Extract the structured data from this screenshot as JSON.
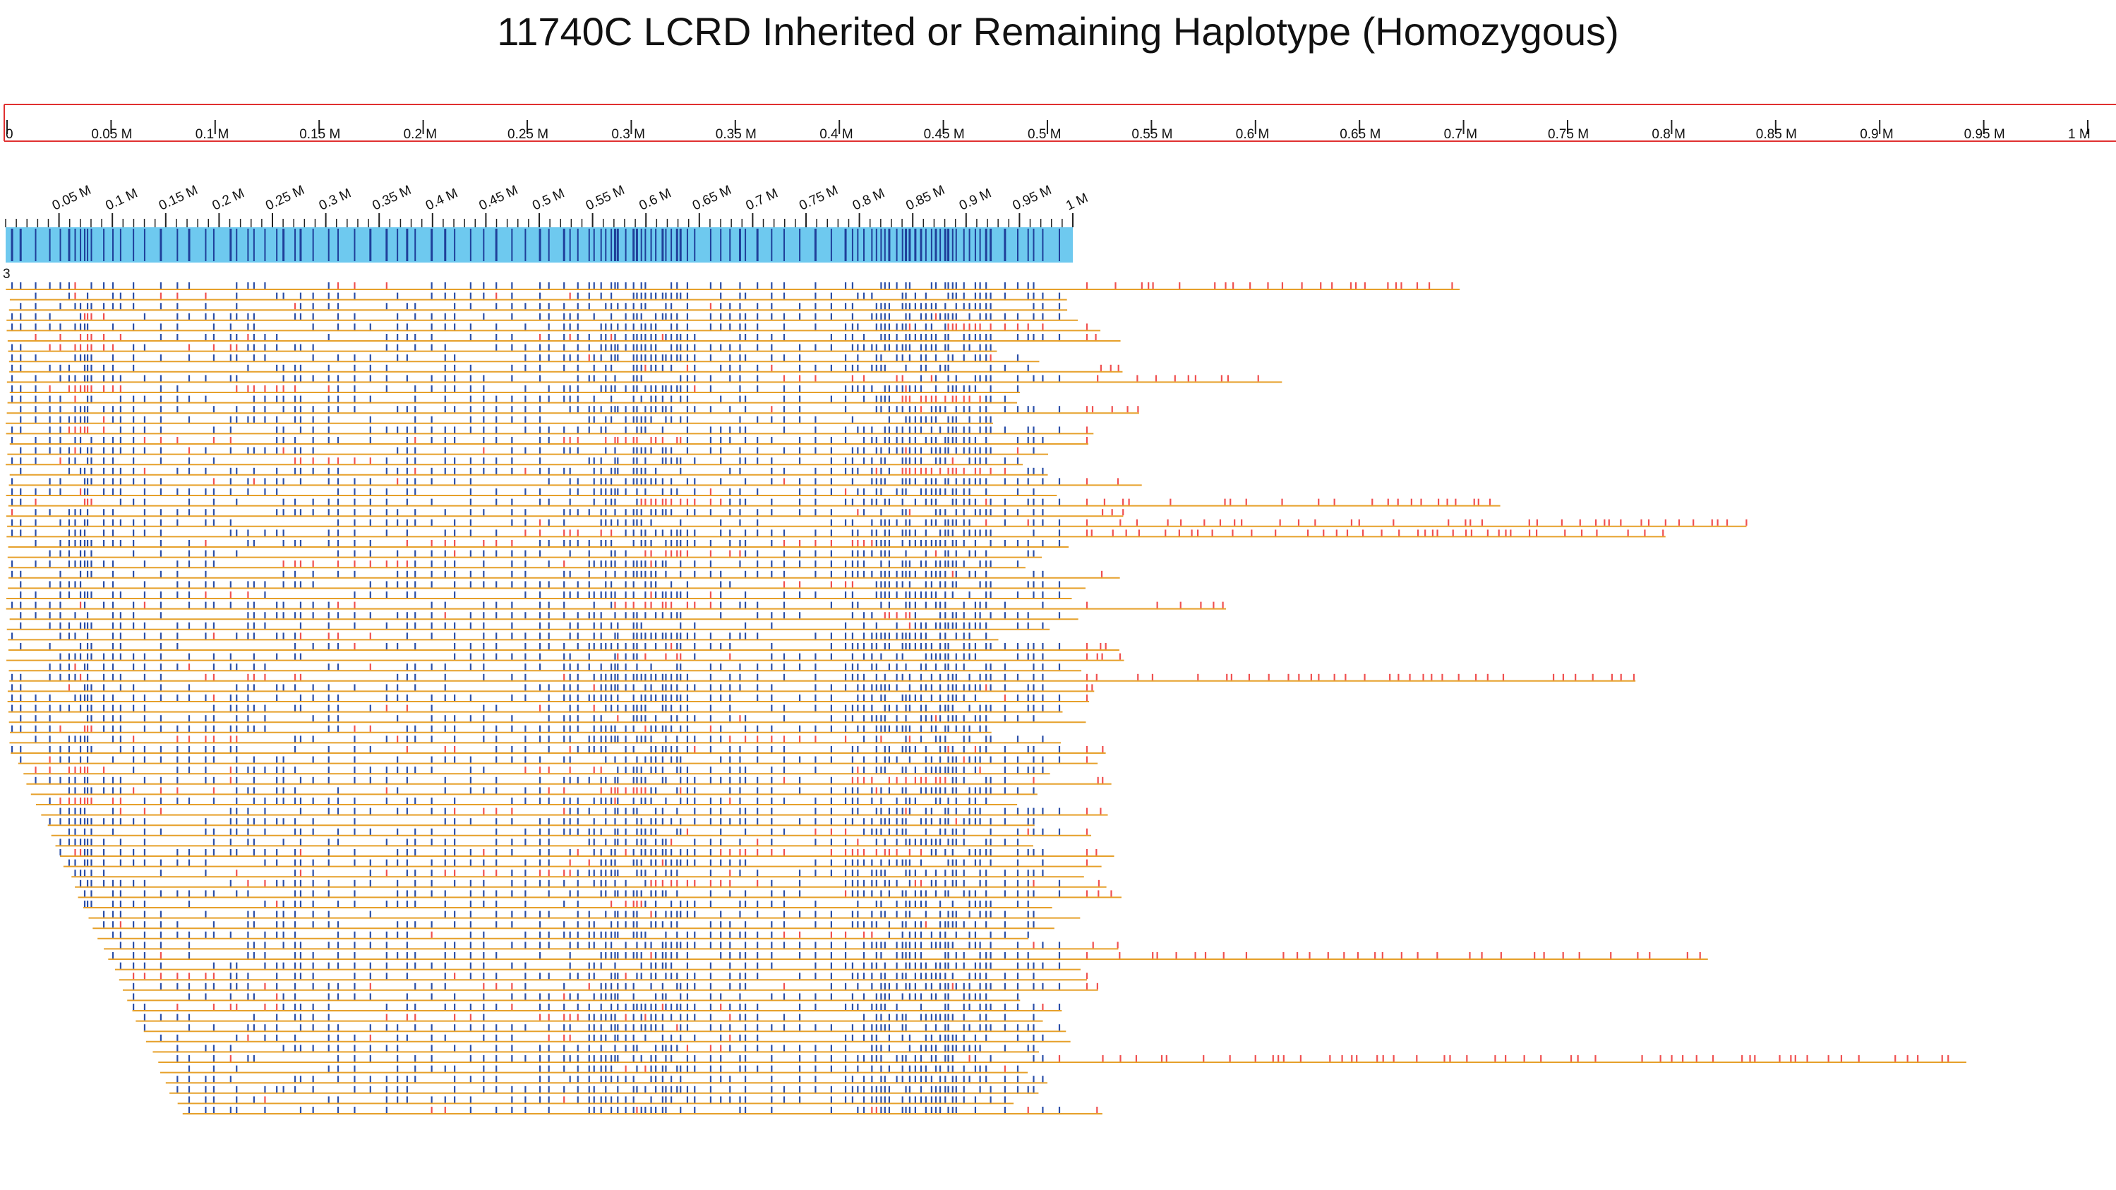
{
  "title": "11740C LCRD Inherited or Remaining Haplotype (Homozygous)",
  "colors": {
    "ruler_border": "#e03030",
    "reference_bar": "#6ec9ef",
    "reference_mark": "#1f3f9a",
    "read_line": "#e6a02a",
    "match_mark": "#2a4ea8",
    "mismatch_mark": "#f05050",
    "text": "#111111"
  },
  "chart_data": [
    {
      "type": "axis",
      "name": "top-ruler",
      "range": [
        0,
        1000000
      ],
      "ticks": [
        0,
        50000,
        100000,
        150000,
        200000,
        250000,
        300000,
        350000,
        400000,
        450000,
        500000,
        550000,
        600000,
        650000,
        700000,
        750000,
        800000,
        850000,
        900000,
        950000,
        1000000
      ],
      "tick_labels": [
        "0",
        "0.05 M",
        "0.1 M",
        "0.15 M",
        "0.2 M",
        "0.25 M",
        "0.3 M",
        "0.35 M",
        "0.4 M",
        "0.45 M",
        "0.5 M",
        "0.55 M",
        "0.6 M",
        "0.65 M",
        "0.7 M",
        "0.75 M",
        "0.8 M",
        "0.85 M",
        "0.9 M",
        "0.95 M",
        "1 M"
      ]
    },
    {
      "type": "reference-track",
      "name": "haplotype-reference",
      "range": [
        0,
        1000000
      ],
      "ticks": [
        50000,
        100000,
        150000,
        200000,
        250000,
        300000,
        350000,
        400000,
        450000,
        500000,
        550000,
        600000,
        650000,
        700000,
        750000,
        800000,
        850000,
        900000,
        950000,
        1000000
      ],
      "tick_labels": [
        "0.05 M",
        "0.1 M",
        "0.15 M",
        "0.2 M",
        "0.25 M",
        "0.3 M",
        "0.35 M",
        "0.4 M",
        "0.45 M",
        "0.5 M",
        "0.55 M",
        "0.6 M",
        "0.65 M",
        "0.7 M",
        "0.75 M",
        "0.8 M",
        "0.85 M",
        "0.9 M",
        "0.95 M",
        "1 M"
      ]
    },
    {
      "type": "read-pileup",
      "name": "haplotype-reads",
      "label": "3",
      "read_count": 81,
      "x_units": "base pairs",
      "mark_types": [
        "match",
        "mismatch"
      ]
    }
  ]
}
